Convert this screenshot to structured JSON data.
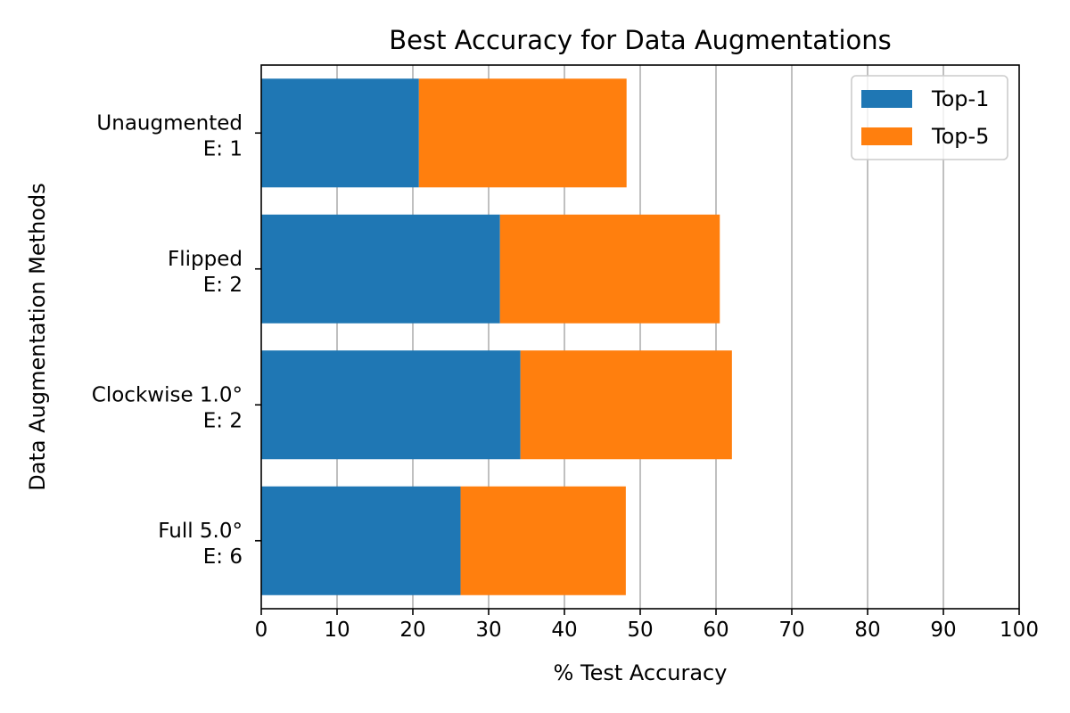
{
  "chart_data": {
    "type": "bar",
    "orientation": "horizontal",
    "stacked": true,
    "title": "Best Accuracy for Data Augmentations",
    "xlabel": "% Test Accuracy",
    "ylabel": "Data Augmentation Methods",
    "xlim": [
      0,
      100
    ],
    "xticks": [
      0,
      10,
      20,
      30,
      40,
      50,
      60,
      70,
      80,
      90,
      100
    ],
    "grid": "x",
    "legend": "top-right",
    "categories": [
      [
        "Unaugmented",
        "E: 1"
      ],
      [
        "Flipped",
        "E: 2"
      ],
      [
        "Clockwise 1.0°",
        "E: 2"
      ],
      [
        "Full 5.0°",
        "E: 6"
      ]
    ],
    "series": [
      {
        "name": "Top-1",
        "color": "#1f77b4",
        "values": [
          20.8,
          31.5,
          34.2,
          26.3
        ]
      },
      {
        "name": "Top-5",
        "color": "#ff7f0e",
        "values": [
          27.4,
          29.0,
          27.9,
          21.8
        ]
      }
    ]
  }
}
